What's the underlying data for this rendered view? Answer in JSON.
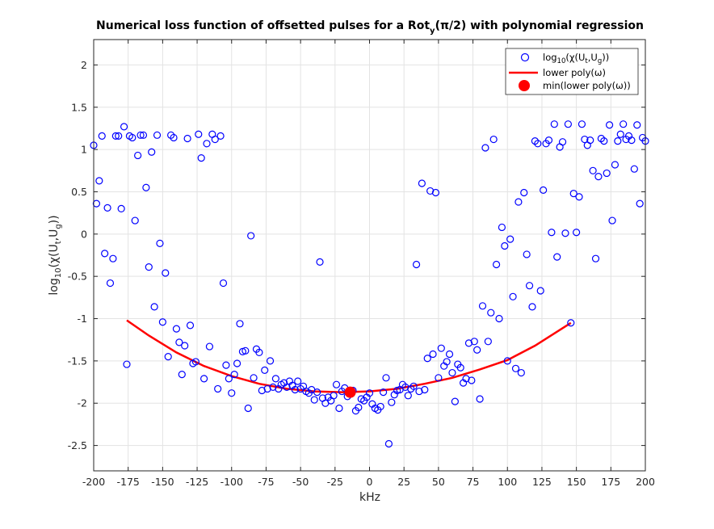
{
  "chart_data": {
    "type": "scatter",
    "title": "Numerical loss function of offsetted pulses for a Rot_y(π/2) with polynomial regression",
    "title_parts": {
      "pre": "Numerical loss function of offsetted pulses for a Rot",
      "sub": "y",
      "post": "(π/2) with polynomial regression"
    },
    "xlabel": "kHz",
    "ylabel": "log10(χ(Ut,Ug))",
    "ylabel_parts": {
      "a": "log",
      "a_sub": "10",
      "b": "(χ(U",
      "b_sub": "t",
      "c": ",U",
      "c_sub": "g",
      "d": "))"
    },
    "xlim": [
      -200,
      200
    ],
    "ylim": [
      -2.8,
      2.3
    ],
    "xticks": [
      -200,
      -175,
      -150,
      -125,
      -100,
      -75,
      -50,
      -25,
      0,
      25,
      50,
      75,
      100,
      125,
      150,
      175,
      200
    ],
    "yticks": [
      -2.5,
      -2,
      -1.5,
      -1,
      -0.5,
      0,
      0.5,
      1,
      1.5,
      2
    ],
    "grid": true,
    "legend_placement": "top-right",
    "colors": {
      "scatter": "#0000ff",
      "poly": "#ff0000",
      "min": "#ff0000"
    },
    "series": [
      {
        "name": "log10(χ(Ut,Ug))",
        "type": "scatter",
        "points": [
          [
            -200,
            1.05
          ],
          [
            -198,
            0.36
          ],
          [
            -196,
            0.63
          ],
          [
            -194,
            1.16
          ],
          [
            -192,
            -0.23
          ],
          [
            -190,
            0.31
          ],
          [
            -188,
            -0.58
          ],
          [
            -186,
            -0.29
          ],
          [
            -184,
            1.16
          ],
          [
            -182,
            1.16
          ],
          [
            -180,
            0.3
          ],
          [
            -178,
            1.27
          ],
          [
            -176,
            -1.54
          ],
          [
            -174,
            1.16
          ],
          [
            -172,
            1.14
          ],
          [
            -170,
            0.16
          ],
          [
            -168,
            0.93
          ],
          [
            -166,
            1.17
          ],
          [
            -164,
            1.17
          ],
          [
            -162,
            0.55
          ],
          [
            -160,
            -0.39
          ],
          [
            -158,
            0.97
          ],
          [
            -156,
            -0.86
          ],
          [
            -154,
            1.17
          ],
          [
            -152,
            -0.11
          ],
          [
            -150,
            -1.04
          ],
          [
            -148,
            -0.46
          ],
          [
            -146,
            -1.45
          ],
          [
            -144,
            1.17
          ],
          [
            -142,
            1.14
          ],
          [
            -140,
            -1.12
          ],
          [
            -138,
            -1.28
          ],
          [
            -136,
            -1.66
          ],
          [
            -134,
            -1.32
          ],
          [
            -132,
            1.13
          ],
          [
            -130,
            -1.08
          ],
          [
            -128,
            -1.53
          ],
          [
            -126,
            -1.51
          ],
          [
            -124,
            1.18
          ],
          [
            -122,
            0.9
          ],
          [
            -120,
            -1.71
          ],
          [
            -118,
            1.07
          ],
          [
            -116,
            -1.33
          ],
          [
            -114,
            1.18
          ],
          [
            -112,
            1.12
          ],
          [
            -110,
            -1.83
          ],
          [
            -108,
            1.16
          ],
          [
            -106,
            -0.58
          ],
          [
            -104,
            -1.55
          ],
          [
            -102,
            -1.71
          ],
          [
            -100,
            -1.88
          ],
          [
            -98,
            -1.66
          ],
          [
            -96,
            -1.53
          ],
          [
            -94,
            -1.06
          ],
          [
            -92,
            -1.39
          ],
          [
            -90,
            -1.38
          ],
          [
            -88,
            -2.06
          ],
          [
            -86,
            -0.02
          ],
          [
            -84,
            -1.7
          ],
          [
            -82,
            -1.36
          ],
          [
            -80,
            -1.4
          ],
          [
            -78,
            -1.85
          ],
          [
            -76,
            -1.61
          ],
          [
            -74,
            -1.83
          ],
          [
            -72,
            -1.5
          ],
          [
            -70,
            -1.81
          ],
          [
            -68,
            -1.71
          ],
          [
            -66,
            -1.83
          ],
          [
            -64,
            -1.78
          ],
          [
            -62,
            -1.76
          ],
          [
            -60,
            -1.81
          ],
          [
            -58,
            -1.74
          ],
          [
            -56,
            -1.79
          ],
          [
            -54,
            -1.84
          ],
          [
            -52,
            -1.74
          ],
          [
            -50,
            -1.83
          ],
          [
            -48,
            -1.8
          ],
          [
            -46,
            -1.86
          ],
          [
            -44,
            -1.88
          ],
          [
            -42,
            -1.84
          ],
          [
            -40,
            -1.96
          ],
          [
            -38,
            -1.87
          ],
          [
            -36,
            -0.33
          ],
          [
            -34,
            -1.94
          ],
          [
            -32,
            -2.0
          ],
          [
            -30,
            -1.93
          ],
          [
            -28,
            -1.97
          ],
          [
            -26,
            -1.91
          ],
          [
            -24,
            -1.78
          ],
          [
            -22,
            -2.06
          ],
          [
            -20,
            -1.86
          ],
          [
            -18,
            -1.82
          ],
          [
            -16,
            -1.92
          ],
          [
            -14,
            -1.89
          ],
          [
            -12,
            -1.85
          ],
          [
            -10,
            -2.09
          ],
          [
            -8,
            -2.05
          ],
          [
            -6,
            -1.95
          ],
          [
            -4,
            -1.97
          ],
          [
            -2,
            -1.93
          ],
          [
            0,
            -1.88
          ],
          [
            2,
            -2.01
          ],
          [
            4,
            -2.06
          ],
          [
            6,
            -2.08
          ],
          [
            8,
            -2.04
          ],
          [
            10,
            -1.87
          ],
          [
            12,
            -1.7
          ],
          [
            14,
            -2.48
          ],
          [
            16,
            -1.99
          ],
          [
            18,
            -1.9
          ],
          [
            20,
            -1.85
          ],
          [
            22,
            -1.84
          ],
          [
            24,
            -1.78
          ],
          [
            26,
            -1.81
          ],
          [
            28,
            -1.91
          ],
          [
            30,
            -1.83
          ],
          [
            32,
            -1.8
          ],
          [
            34,
            -0.36
          ],
          [
            36,
            -1.86
          ],
          [
            38,
            0.6
          ],
          [
            40,
            -1.84
          ],
          [
            42,
            -1.47
          ],
          [
            44,
            0.51
          ],
          [
            46,
            -1.42
          ],
          [
            48,
            0.49
          ],
          [
            50,
            -1.7
          ],
          [
            52,
            -1.35
          ],
          [
            54,
            -1.56
          ],
          [
            56,
            -1.51
          ],
          [
            58,
            -1.42
          ],
          [
            60,
            -1.64
          ],
          [
            62,
            -1.98
          ],
          [
            64,
            -1.54
          ],
          [
            66,
            -1.58
          ],
          [
            68,
            -1.76
          ],
          [
            70,
            -1.71
          ],
          [
            72,
            -1.29
          ],
          [
            74,
            -1.73
          ],
          [
            76,
            -1.27
          ],
          [
            78,
            -1.37
          ],
          [
            80,
            -1.95
          ],
          [
            82,
            -0.85
          ],
          [
            84,
            1.02
          ],
          [
            86,
            -1.27
          ],
          [
            88,
            -0.93
          ],
          [
            90,
            1.12
          ],
          [
            92,
            -0.36
          ],
          [
            94,
            -1.0
          ],
          [
            96,
            0.08
          ],
          [
            98,
            -0.14
          ],
          [
            100,
            -1.5
          ],
          [
            102,
            -0.06
          ],
          [
            104,
            -0.74
          ],
          [
            106,
            -1.59
          ],
          [
            108,
            0.38
          ],
          [
            110,
            -1.64
          ],
          [
            112,
            0.49
          ],
          [
            114,
            -0.24
          ],
          [
            116,
            -0.61
          ],
          [
            118,
            -0.86
          ],
          [
            120,
            1.1
          ],
          [
            122,
            1.07
          ],
          [
            124,
            -0.67
          ],
          [
            126,
            0.52
          ],
          [
            128,
            1.07
          ],
          [
            130,
            1.11
          ],
          [
            132,
            0.02
          ],
          [
            134,
            1.3
          ],
          [
            136,
            -0.27
          ],
          [
            138,
            1.03
          ],
          [
            140,
            1.09
          ],
          [
            142,
            0.01
          ],
          [
            144,
            1.3
          ],
          [
            146,
            -1.05
          ],
          [
            148,
            0.48
          ],
          [
            150,
            0.02
          ],
          [
            152,
            0.44
          ],
          [
            154,
            1.3
          ],
          [
            156,
            1.12
          ],
          [
            158,
            1.05
          ],
          [
            160,
            1.11
          ],
          [
            162,
            0.75
          ],
          [
            164,
            -0.29
          ],
          [
            166,
            0.68
          ],
          [
            168,
            1.13
          ],
          [
            170,
            1.1
          ],
          [
            172,
            0.72
          ],
          [
            174,
            1.29
          ],
          [
            176,
            0.16
          ],
          [
            178,
            0.82
          ],
          [
            180,
            1.1
          ],
          [
            182,
            1.18
          ],
          [
            184,
            1.3
          ],
          [
            186,
            1.12
          ],
          [
            188,
            1.16
          ],
          [
            190,
            1.11
          ],
          [
            192,
            0.77
          ],
          [
            194,
            1.29
          ],
          [
            196,
            0.36
          ],
          [
            198,
            1.14
          ],
          [
            200,
            1.1
          ]
        ]
      },
      {
        "name": "lower poly(ω)",
        "type": "line",
        "points": [
          [
            -176,
            -1.02
          ],
          [
            -160,
            -1.2
          ],
          [
            -140,
            -1.4
          ],
          [
            -120,
            -1.56
          ],
          [
            -100,
            -1.68
          ],
          [
            -80,
            -1.77
          ],
          [
            -60,
            -1.83
          ],
          [
            -40,
            -1.86
          ],
          [
            -20,
            -1.87
          ],
          [
            0,
            -1.86
          ],
          [
            20,
            -1.83
          ],
          [
            40,
            -1.77
          ],
          [
            60,
            -1.7
          ],
          [
            80,
            -1.6
          ],
          [
            100,
            -1.49
          ],
          [
            120,
            -1.32
          ],
          [
            146,
            -1.05
          ]
        ]
      },
      {
        "name": "min(lower poly(ω))",
        "type": "marker",
        "points": [
          [
            -14,
            -1.87
          ]
        ]
      }
    ],
    "legend": [
      {
        "marker": "circle",
        "pre": "log",
        "sub1": "10",
        "mid": "(χ(U",
        "sub2": "t",
        "mid2": ",U",
        "sub3": "g",
        "post": "))"
      },
      {
        "marker": "line",
        "text": "lower poly(ω)"
      },
      {
        "marker": "dot",
        "text": "min(lower poly(ω))"
      }
    ]
  }
}
